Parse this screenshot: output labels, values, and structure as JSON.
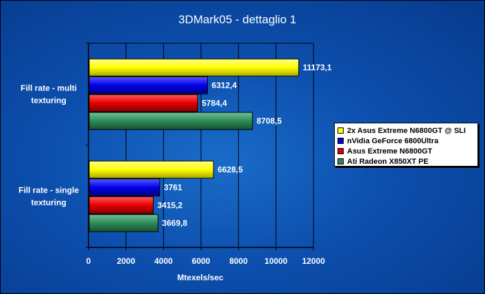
{
  "chart_data": {
    "type": "bar",
    "orientation": "horizontal",
    "title": "3DMark05 - dettaglio 1",
    "xlabel": "Mtexels/sec",
    "ylabel": "",
    "xlim": [
      0,
      12000
    ],
    "xticks": [
      "0",
      "2000",
      "4000",
      "6000",
      "8000",
      "10000",
      "12000"
    ],
    "grid": true,
    "legend_position": "right",
    "categories": [
      [
        "Fill rate - multi",
        "texturing"
      ],
      [
        "Fill rate - single",
        "texturing"
      ]
    ],
    "series": [
      {
        "name": "2x Asus Extreme N6800GT @ SLI",
        "color": "#ffff00",
        "values": [
          11173.1,
          6628.5
        ],
        "labels": [
          "11173,1",
          "6628,5"
        ]
      },
      {
        "name": "nVidia GeForce 6800Ultra",
        "color": "#0000e0",
        "values": [
          6312.4,
          3761
        ],
        "labels": [
          "6312,4",
          "3761"
        ]
      },
      {
        "name": "Asus Extreme N6800GT",
        "color": "#e00000",
        "values": [
          5784.4,
          3415.2
        ],
        "labels": [
          "5784,4",
          "3415,2"
        ]
      },
      {
        "name": "Ati Radeon X850XT PE",
        "color": "#2e8b57",
        "values": [
          8708.5,
          3669.8
        ],
        "labels": [
          "8708,5",
          "3669,8"
        ]
      }
    ]
  }
}
